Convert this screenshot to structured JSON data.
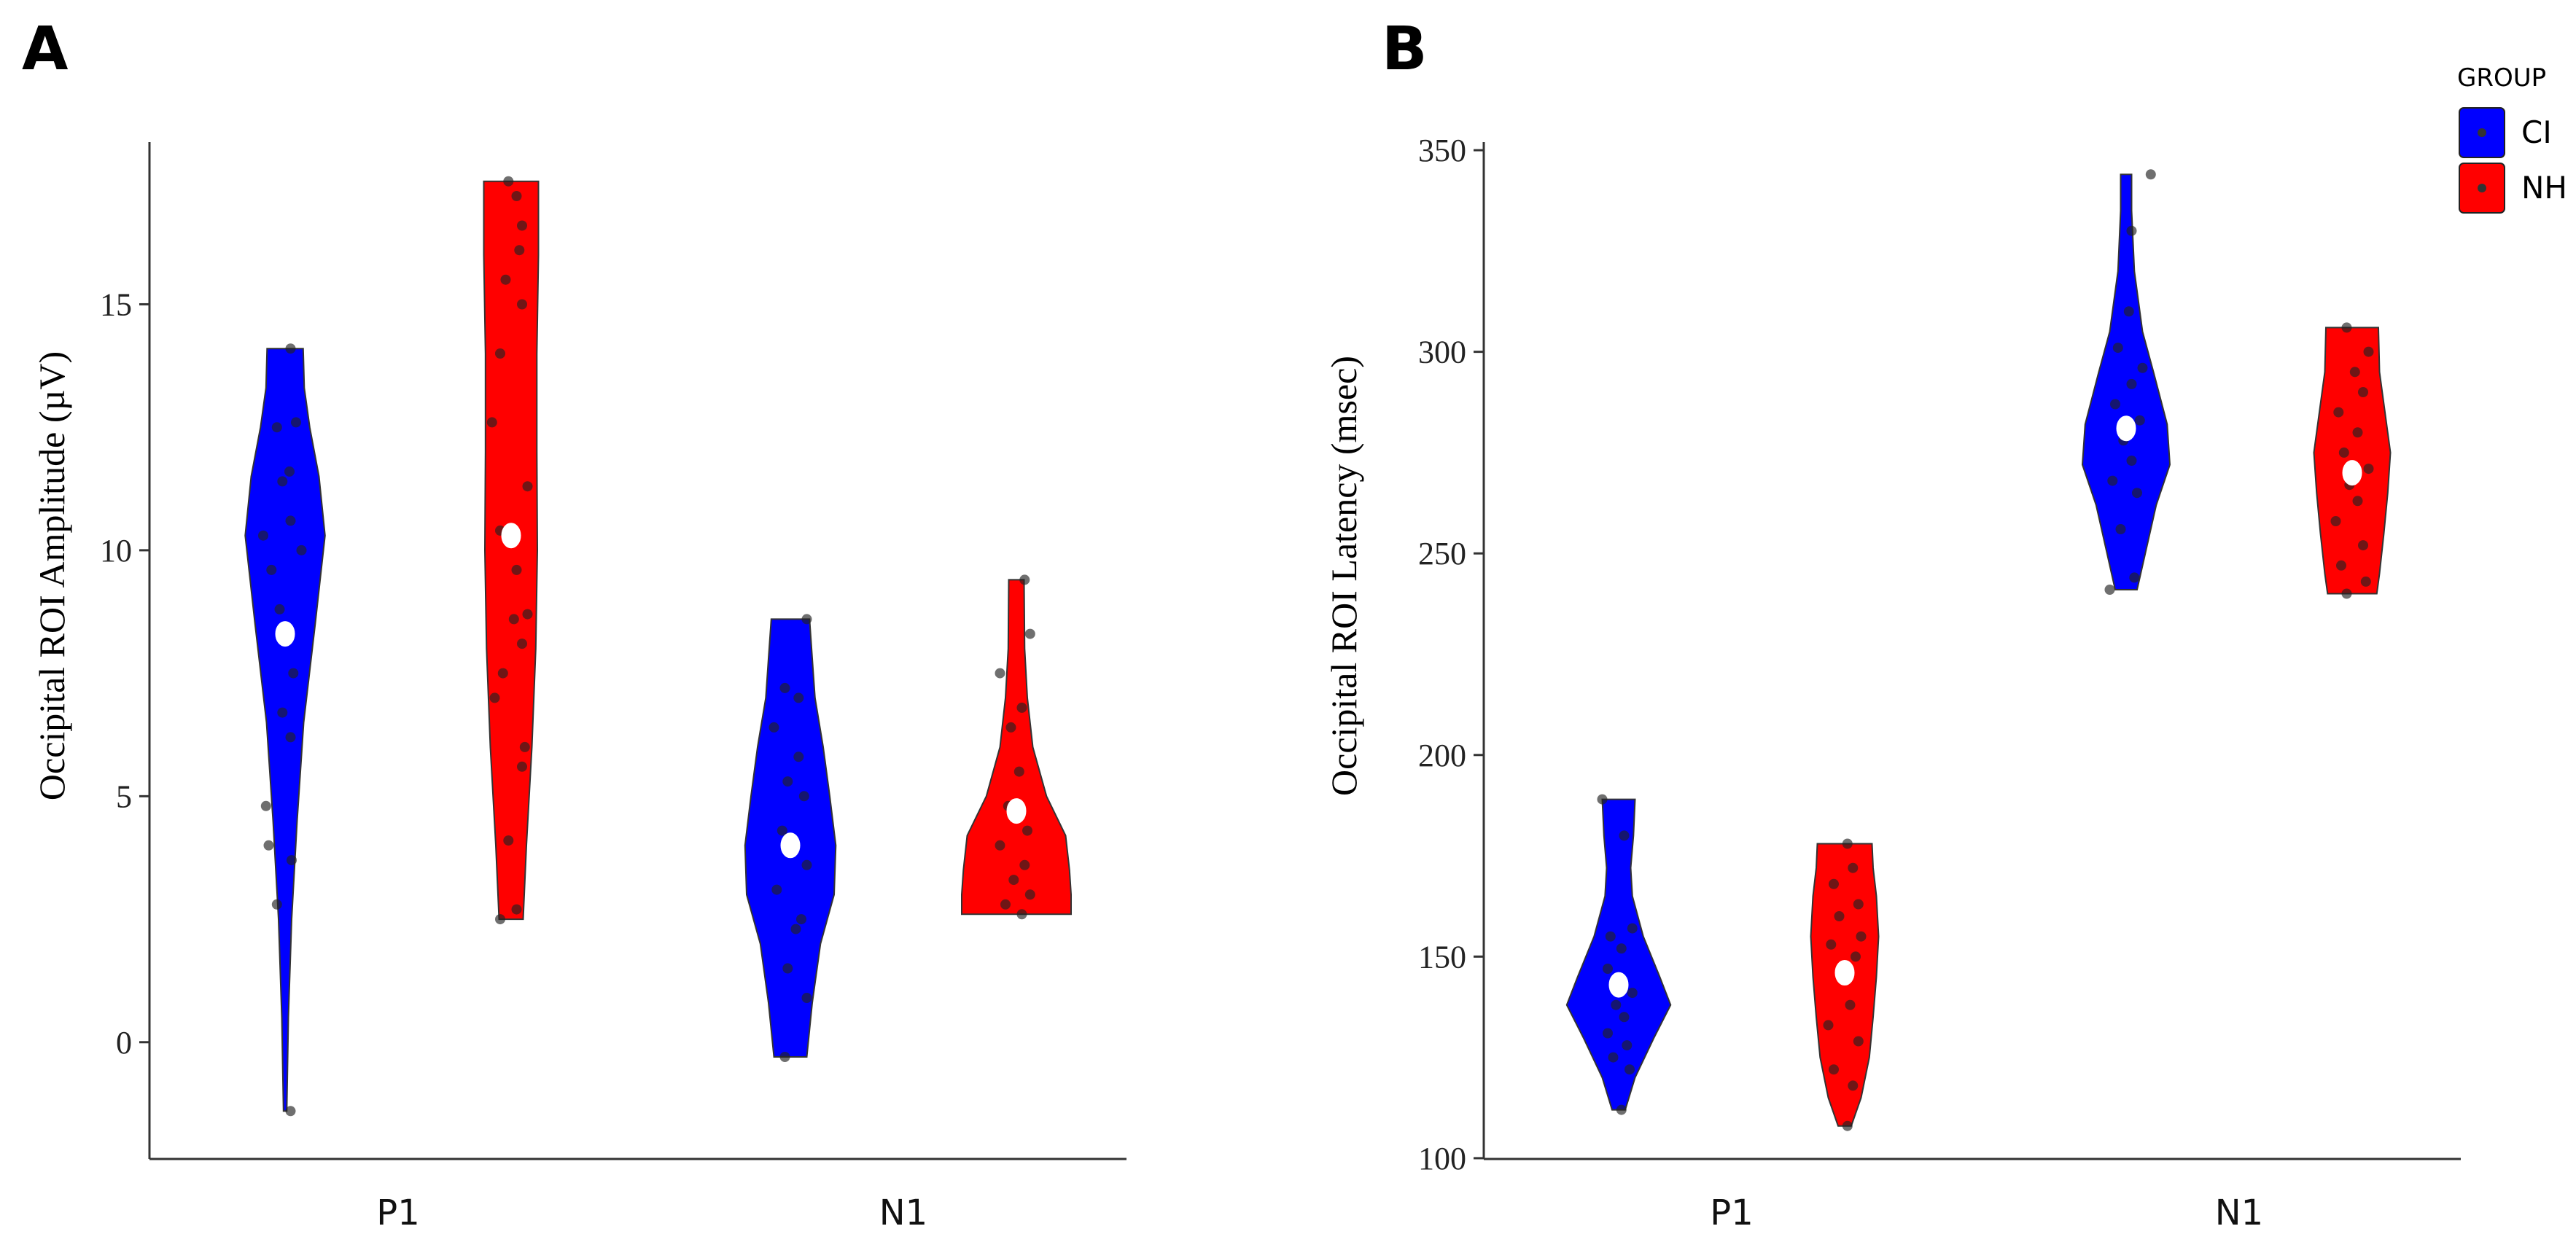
{
  "legend": {
    "title": "GROUP",
    "entries": [
      {
        "label": "CI",
        "color": "#0000ff"
      },
      {
        "label": "NH",
        "color": "#ff0000"
      }
    ]
  },
  "chart_data": [
    {
      "type": "violin",
      "panel_label": "A",
      "title": "",
      "xlabel": "",
      "ylabel": "Occipital ROI Amplitude (µV)",
      "categories": [
        "P1",
        "N1"
      ],
      "groups": [
        "CI",
        "NH"
      ],
      "ylim": [
        -2.3,
        18
      ],
      "yticks": [
        0,
        5,
        10,
        15
      ],
      "grid": false,
      "legend_position": "right",
      "violins": [
        {
          "category": "P1",
          "group": "CI",
          "color": "#0000ff",
          "min": -1.4,
          "max": 14.1,
          "mean": 8.3,
          "profile": [
            [
              -1.4,
              0.03
            ],
            [
              0.5,
              0.06
            ],
            [
              2.5,
              0.12
            ],
            [
              4.5,
              0.22
            ],
            [
              6.5,
              0.34
            ],
            [
              8.5,
              0.55
            ],
            [
              10.3,
              0.73
            ],
            [
              11.5,
              0.62
            ],
            [
              12.5,
              0.45
            ],
            [
              13.3,
              0.35
            ],
            [
              14.1,
              0.33
            ]
          ],
          "points": [
            [
              -1.4,
              0.1
            ],
            [
              2.8,
              -0.15
            ],
            [
              3.7,
              0.12
            ],
            [
              4.0,
              -0.3
            ],
            [
              4.8,
              -0.35
            ],
            [
              6.2,
              0.1
            ],
            [
              6.7,
              -0.05
            ],
            [
              7.5,
              0.15
            ],
            [
              8.8,
              -0.1
            ],
            [
              9.6,
              -0.25
            ],
            [
              10.0,
              0.3
            ],
            [
              10.3,
              -0.4
            ],
            [
              10.6,
              0.1
            ],
            [
              11.4,
              -0.05
            ],
            [
              11.6,
              0.08
            ],
            [
              12.5,
              -0.15
            ],
            [
              12.6,
              0.2
            ],
            [
              14.1,
              0.1
            ]
          ]
        },
        {
          "category": "P1",
          "group": "NH",
          "color": "#ff0000",
          "min": 2.5,
          "max": 17.5,
          "mean": 10.3,
          "profile": [
            [
              2.5,
              0.22
            ],
            [
              4,
              0.28
            ],
            [
              6,
              0.38
            ],
            [
              8,
              0.45
            ],
            [
              10,
              0.48
            ],
            [
              12,
              0.47
            ],
            [
              14,
              0.47
            ],
            [
              16,
              0.5
            ],
            [
              17.5,
              0.5
            ]
          ],
          "points": [
            [
              2.5,
              -0.2
            ],
            [
              2.7,
              0.1
            ],
            [
              4.1,
              -0.05
            ],
            [
              5.6,
              0.2
            ],
            [
              6.0,
              0.25
            ],
            [
              7.0,
              -0.3
            ],
            [
              7.5,
              -0.15
            ],
            [
              8.1,
              0.2
            ],
            [
              8.6,
              0.05
            ],
            [
              8.7,
              0.3
            ],
            [
              9.6,
              0.1
            ],
            [
              10.4,
              -0.2
            ],
            [
              11.3,
              0.3
            ],
            [
              12.6,
              -0.35
            ],
            [
              14.0,
              -0.2
            ],
            [
              15.0,
              0.2
            ],
            [
              15.5,
              -0.1
            ],
            [
              16.1,
              0.15
            ],
            [
              16.6,
              0.2
            ],
            [
              17.2,
              0.1
            ],
            [
              17.5,
              -0.05
            ]
          ]
        },
        {
          "category": "N1",
          "group": "CI",
          "color": "#0000ff",
          "min": -0.3,
          "max": 8.6,
          "mean": 4.0,
          "profile": [
            [
              -0.3,
              0.3
            ],
            [
              0.8,
              0.4
            ],
            [
              2.0,
              0.55
            ],
            [
              3.0,
              0.8
            ],
            [
              4.0,
              0.83
            ],
            [
              5.0,
              0.72
            ],
            [
              6.0,
              0.6
            ],
            [
              7.0,
              0.45
            ],
            [
              7.8,
              0.4
            ],
            [
              8.6,
              0.35
            ]
          ],
          "points": [
            [
              -0.3,
              -0.1
            ],
            [
              0.9,
              0.3
            ],
            [
              1.5,
              -0.05
            ],
            [
              2.3,
              0.1
            ],
            [
              2.5,
              0.2
            ],
            [
              3.1,
              -0.25
            ],
            [
              3.6,
              0.3
            ],
            [
              4.3,
              -0.15
            ],
            [
              5.0,
              0.25
            ],
            [
              5.3,
              -0.05
            ],
            [
              5.8,
              0.15
            ],
            [
              6.4,
              -0.3
            ],
            [
              7.0,
              0.15
            ],
            [
              7.2,
              -0.1
            ],
            [
              8.6,
              0.3
            ]
          ]
        },
        {
          "category": "N1",
          "group": "NH",
          "color": "#ff0000",
          "min": 2.6,
          "max": 9.4,
          "mean": 4.7,
          "profile": [
            [
              2.6,
              1.0
            ],
            [
              3.0,
              1.0
            ],
            [
              3.5,
              0.97
            ],
            [
              4.2,
              0.9
            ],
            [
              5.0,
              0.55
            ],
            [
              6.0,
              0.3
            ],
            [
              7.0,
              0.2
            ],
            [
              8.0,
              0.15
            ],
            [
              9.4,
              0.14
            ]
          ],
          "points": [
            [
              2.6,
              0.1
            ],
            [
              2.8,
              -0.2
            ],
            [
              3.0,
              0.25
            ],
            [
              3.3,
              -0.05
            ],
            [
              3.6,
              0.15
            ],
            [
              4.0,
              -0.3
            ],
            [
              4.3,
              0.2
            ],
            [
              4.8,
              -0.15
            ],
            [
              5.5,
              0.05
            ],
            [
              6.4,
              -0.1
            ],
            [
              6.8,
              0.1
            ],
            [
              7.5,
              -0.3
            ],
            [
              8.3,
              0.25
            ],
            [
              9.4,
              0.15
            ]
          ]
        }
      ]
    },
    {
      "type": "violin",
      "panel_label": "B",
      "title": "",
      "xlabel": "",
      "ylabel": "Occipital ROI Latency (msec)",
      "categories": [
        "P1",
        "N1"
      ],
      "groups": [
        "CI",
        "NH"
      ],
      "ylim": [
        98,
        352
      ],
      "yticks": [
        100,
        150,
        200,
        250,
        300,
        350
      ],
      "grid": false,
      "legend_position": "right",
      "violins": [
        {
          "category": "P1",
          "group": "CI",
          "color": "#0000ff",
          "min": 112,
          "max": 189,
          "mean": 143,
          "profile": [
            [
              112,
              0.12
            ],
            [
              120,
              0.3
            ],
            [
              130,
              0.65
            ],
            [
              138,
              0.95
            ],
            [
              145,
              0.75
            ],
            [
              155,
              0.45
            ],
            [
              165,
              0.25
            ],
            [
              172,
              0.22
            ],
            [
              180,
              0.27
            ],
            [
              189,
              0.3
            ]
          ],
          "points": [
            [
              112,
              0.05
            ],
            [
              122,
              0.2
            ],
            [
              125,
              -0.1
            ],
            [
              128,
              0.15
            ],
            [
              131,
              -0.2
            ],
            [
              135,
              0.1
            ],
            [
              138,
              -0.05
            ],
            [
              141,
              0.25
            ],
            [
              147,
              -0.2
            ],
            [
              152,
              0.05
            ],
            [
              155,
              -0.15
            ],
            [
              157,
              0.25
            ],
            [
              180,
              0.1
            ],
            [
              189,
              -0.3
            ]
          ]
        },
        {
          "category": "P1",
          "group": "NH",
          "color": "#ff0000",
          "min": 108,
          "max": 178,
          "mean": 146,
          "profile": [
            [
              108,
              0.12
            ],
            [
              115,
              0.3
            ],
            [
              125,
              0.45
            ],
            [
              135,
              0.52
            ],
            [
              145,
              0.58
            ],
            [
              155,
              0.62
            ],
            [
              165,
              0.58
            ],
            [
              172,
              0.52
            ],
            [
              178,
              0.5
            ]
          ],
          "points": [
            [
              108,
              0.05
            ],
            [
              118,
              0.15
            ],
            [
              122,
              -0.2
            ],
            [
              129,
              0.25
            ],
            [
              133,
              -0.3
            ],
            [
              138,
              0.1
            ],
            [
              145,
              -0.05
            ],
            [
              150,
              0.2
            ],
            [
              153,
              -0.25
            ],
            [
              155,
              0.3
            ],
            [
              160,
              -0.1
            ],
            [
              163,
              0.25
            ],
            [
              168,
              -0.2
            ],
            [
              172,
              0.15
            ],
            [
              178,
              0.05
            ]
          ]
        },
        {
          "category": "N1",
          "group": "CI",
          "color": "#0000ff",
          "min": 241,
          "max": 344,
          "mean": 281,
          "profile": [
            [
              241,
              0.2
            ],
            [
              250,
              0.35
            ],
            [
              262,
              0.55
            ],
            [
              272,
              0.8
            ],
            [
              282,
              0.75
            ],
            [
              295,
              0.5
            ],
            [
              305,
              0.3
            ],
            [
              320,
              0.15
            ],
            [
              335,
              0.1
            ],
            [
              344,
              0.1
            ]
          ],
          "points": [
            [
              241,
              -0.3
            ],
            [
              244,
              0.15
            ],
            [
              256,
              -0.1
            ],
            [
              265,
              0.2
            ],
            [
              268,
              -0.25
            ],
            [
              273,
              0.1
            ],
            [
              278,
              -0.05
            ],
            [
              283,
              0.25
            ],
            [
              287,
              -0.2
            ],
            [
              292,
              0.1
            ],
            [
              296,
              0.3
            ],
            [
              301,
              -0.15
            ],
            [
              310,
              0.05
            ],
            [
              330,
              0.1
            ],
            [
              344,
              0.45
            ]
          ]
        },
        {
          "category": "N1",
          "group": "NH",
          "color": "#ff0000",
          "min": 240,
          "max": 306,
          "mean": 270,
          "profile": [
            [
              240,
              0.45
            ],
            [
              245,
              0.5
            ],
            [
              255,
              0.58
            ],
            [
              265,
              0.65
            ],
            [
              275,
              0.7
            ],
            [
              285,
              0.6
            ],
            [
              295,
              0.5
            ],
            [
              306,
              0.48
            ]
          ],
          "points": [
            [
              240,
              -0.1
            ],
            [
              243,
              0.25
            ],
            [
              247,
              -0.2
            ],
            [
              252,
              0.2
            ],
            [
              258,
              -0.3
            ],
            [
              263,
              0.1
            ],
            [
              267,
              -0.05
            ],
            [
              271,
              0.3
            ],
            [
              275,
              -0.15
            ],
            [
              280,
              0.1
            ],
            [
              285,
              -0.25
            ],
            [
              290,
              0.2
            ],
            [
              295,
              0.05
            ],
            [
              300,
              0.3
            ],
            [
              306,
              -0.1
            ]
          ]
        }
      ]
    }
  ]
}
